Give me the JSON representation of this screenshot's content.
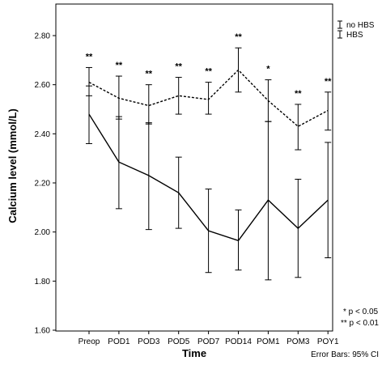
{
  "chart_data": {
    "type": "line",
    "xlabel": "Time",
    "ylabel": "Calcium level (mmol/L)",
    "ylim": [
      1.6,
      2.8
    ],
    "categories": [
      "Preop",
      "POD1",
      "POD3",
      "POD5",
      "POD7",
      "POD14",
      "POM1",
      "POM3",
      "POY1"
    ],
    "yticks": [
      "1.60",
      "1.80",
      "2.00",
      "2.20",
      "2.40",
      "2.60",
      "2.80"
    ],
    "grid": false,
    "legend_position": "top-right",
    "series": [
      {
        "name": "no HBS",
        "linestyle": "dashed",
        "values": [
          2.61,
          2.545,
          2.515,
          2.555,
          2.54,
          2.66,
          2.535,
          2.43,
          2.495
        ],
        "ci_low": [
          2.555,
          2.46,
          2.44,
          2.48,
          2.48,
          2.57,
          2.45,
          2.335,
          2.415
        ],
        "ci_high": [
          2.67,
          2.635,
          2.6,
          2.63,
          2.61,
          2.75,
          2.62,
          2.52,
          2.57
        ],
        "significance": [
          "**",
          "**",
          "**",
          "**",
          "**",
          "**",
          "*",
          "**",
          "**"
        ]
      },
      {
        "name": "HBS",
        "linestyle": "solid",
        "values": [
          2.48,
          2.285,
          2.23,
          2.16,
          2.005,
          1.965,
          2.13,
          2.015,
          2.13
        ],
        "ci_low": [
          2.36,
          2.095,
          2.01,
          2.015,
          1.835,
          1.845,
          1.805,
          1.815,
          1.895
        ],
        "ci_high": [
          2.595,
          2.47,
          2.445,
          2.305,
          2.175,
          2.09,
          2.45,
          2.215,
          2.365
        ]
      }
    ],
    "annotations": {
      "sig1": "*  p < 0.05",
      "sig2": "** p < 0.01",
      "error_bars": "Error Bars: 95% CI"
    }
  }
}
